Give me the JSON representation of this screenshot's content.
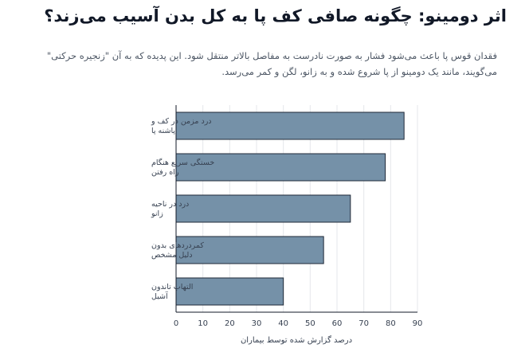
{
  "header": {
    "title": "اثر دومینو: چگونه صافی کف پا به کل بدن آسیب می‌زند؟",
    "subtitle": "فقدان قوس پا باعث می‌شود فشار به صورت نادرست به مفاصل بالاتر منتقل شود. این پدیده که به آن \"زنجیره حرکتی\" می‌گویند، مانند یک دومینو از پا شروع شده و به زانو، لگن و کمر می‌رسد."
  },
  "colors": {
    "bar_fill": "#7591a8",
    "bar_stroke": "#1f2937",
    "axis": "#111827",
    "grid": "#e5e7eb",
    "tick_text": "#374151"
  },
  "chart_data": {
    "type": "bar",
    "orientation": "horizontal",
    "categories": [
      [
        "درد مزمن در کف و",
        "پاشنه پا"
      ],
      [
        "خستگی سریع هنگام",
        "راه رفتن"
      ],
      [
        "درد در ناحیه",
        "زانو"
      ],
      [
        "کمردردهای بدون",
        "دلیل مشخص"
      ],
      [
        "التهاب تاندون",
        "آشیل"
      ]
    ],
    "values": [
      85,
      78,
      65,
      55,
      40
    ],
    "xlabel": "درصد گزارش شده توسط بیماران",
    "xlim": [
      0,
      90
    ],
    "xticks": [
      0,
      10,
      20,
      30,
      40,
      50,
      60,
      70,
      80,
      90
    ],
    "grid": true
  }
}
